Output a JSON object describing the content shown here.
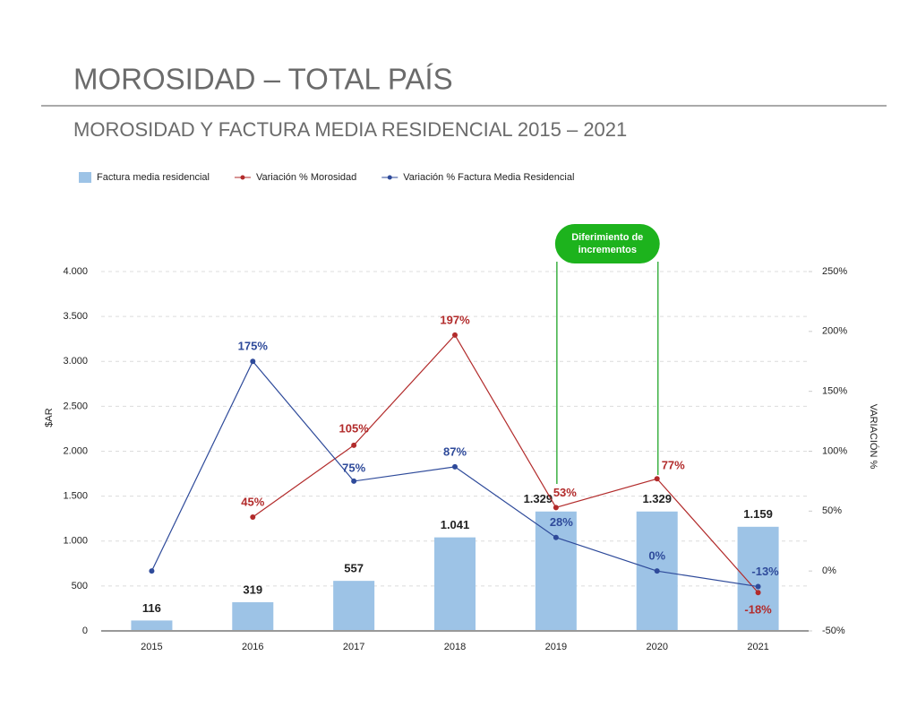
{
  "chart_data": {
    "type": "bar",
    "header": "MOROSIDAD – TOTAL PAÍS",
    "title": "MOROSIDAD Y FACTURA MEDIA RESIDENCIAL 2015 – 2021",
    "ylabel": "$AR",
    "y2label": "VARIACIÓN %",
    "annotation": "Diferimiento de incrementos",
    "categories": [
      "2015",
      "2016",
      "2017",
      "2018",
      "2019",
      "2020",
      "2021"
    ],
    "series": [
      {
        "name": "Factura media residencial",
        "type": "bar",
        "color": "#9dc3e6",
        "values": [
          116,
          319,
          557,
          1041,
          1329,
          1329,
          1159
        ],
        "value_labels": [
          "116",
          "319",
          "557",
          "1.041",
          "1.329",
          "1.329",
          "1.159"
        ]
      },
      {
        "name": "Variación % Morosidad",
        "type": "line",
        "axis": "y2",
        "color": "#b22b2b",
        "values": [
          null,
          45,
          105,
          197,
          53,
          77,
          -18
        ],
        "value_labels": [
          null,
          "45%",
          "105%",
          "197%",
          "53%",
          "77%",
          "-18%"
        ]
      },
      {
        "name": "Variación %  Factura Media Residencial",
        "type": "line",
        "axis": "y2",
        "color": "#2e4a9a",
        "values": [
          0,
          175,
          75,
          87,
          28,
          0,
          -13
        ],
        "value_labels": [
          null,
          "175%",
          "75%",
          "87%",
          "28%",
          "0%",
          "-13%"
        ]
      }
    ],
    "ylim": [
      0,
      4000
    ],
    "yticks": [
      0,
      500,
      {
        "value": 1000,
        "label": "1.000"
      },
      {
        "value": 1500,
        "label": "1.500"
      },
      {
        "value": 2000,
        "label": "2.000"
      },
      {
        "value": 2500,
        "label": "2.500"
      },
      {
        "value": 3000,
        "label": "3.000"
      },
      {
        "value": 3500,
        "label": "3.500"
      },
      {
        "value": 4000,
        "label": "4.000"
      }
    ],
    "y2lim": [
      -50,
      250
    ],
    "y2ticks": [
      {
        "value": -50,
        "label": "-50%"
      },
      {
        "value": 0,
        "label": "0%"
      },
      {
        "value": 50,
        "label": "50%"
      },
      {
        "value": 100,
        "label": "100%"
      },
      {
        "value": 150,
        "label": "150%"
      },
      {
        "value": 200,
        "label": "200%"
      },
      {
        "value": 250,
        "label": "250%"
      }
    ],
    "grid": true,
    "legend": "top-left"
  }
}
